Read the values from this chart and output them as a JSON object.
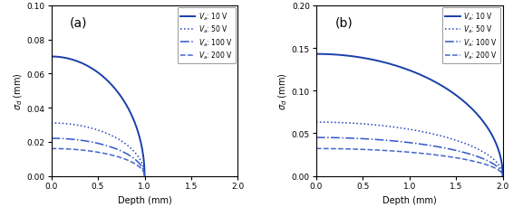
{
  "panel_a": {
    "label": "(a)",
    "xlim": [
      0.0,
      2.0
    ],
    "ylim": [
      0.0,
      0.1
    ],
    "yticks": [
      0.0,
      0.02,
      0.04,
      0.06,
      0.08,
      0.1
    ],
    "xticks": [
      0.0,
      0.5,
      1.0,
      1.5,
      2.0
    ],
    "max_depth": 1.0,
    "curves": [
      {
        "Va": 10,
        "y0": 0.07,
        "linestyle": "solid",
        "color": "#1a3faa",
        "linewidth": 1.4
      },
      {
        "Va": 50,
        "y0": 0.031,
        "linestyle": "dotted",
        "color": "#2244bb",
        "linewidth": 1.1
      },
      {
        "Va": 100,
        "y0": 0.022,
        "linestyle": "dashdot",
        "color": "#3355cc",
        "linewidth": 1.1
      },
      {
        "Va": 200,
        "y0": 0.016,
        "linestyle": "dashed",
        "color": "#4466cc",
        "linewidth": 1.1
      }
    ]
  },
  "panel_b": {
    "label": "(b)",
    "xlim": [
      0.0,
      2.0
    ],
    "ylim": [
      0.0,
      0.2
    ],
    "yticks": [
      0.0,
      0.05,
      0.1,
      0.15,
      0.2
    ],
    "xticks": [
      0.0,
      0.5,
      1.0,
      1.5,
      2.0
    ],
    "max_depth": 2.0,
    "curves": [
      {
        "Va": 10,
        "y0": 0.143,
        "linestyle": "solid",
        "color": "#1a3faa",
        "linewidth": 1.4
      },
      {
        "Va": 50,
        "y0": 0.063,
        "linestyle": "dotted",
        "color": "#2244bb",
        "linewidth": 1.1
      },
      {
        "Va": 100,
        "y0": 0.045,
        "linestyle": "dashdot",
        "color": "#3355cc",
        "linewidth": 1.1
      },
      {
        "Va": 200,
        "y0": 0.032,
        "linestyle": "dashed",
        "color": "#4466cc",
        "linewidth": 1.1
      }
    ]
  },
  "xlabel": "Depth (mm)",
  "ylabel": "$\\sigma_{d}$ (mm)",
  "legend_labels": [
    "$V_a$: 10 V",
    "$V_a$: 50 V",
    "$V_a$: 100 V",
    "$V_a$: 200 V"
  ],
  "legend_linestyles": [
    "solid",
    "dotted",
    "dashdot",
    "dashed"
  ],
  "figsize": [
    5.66,
    2.3
  ],
  "dpi": 100
}
